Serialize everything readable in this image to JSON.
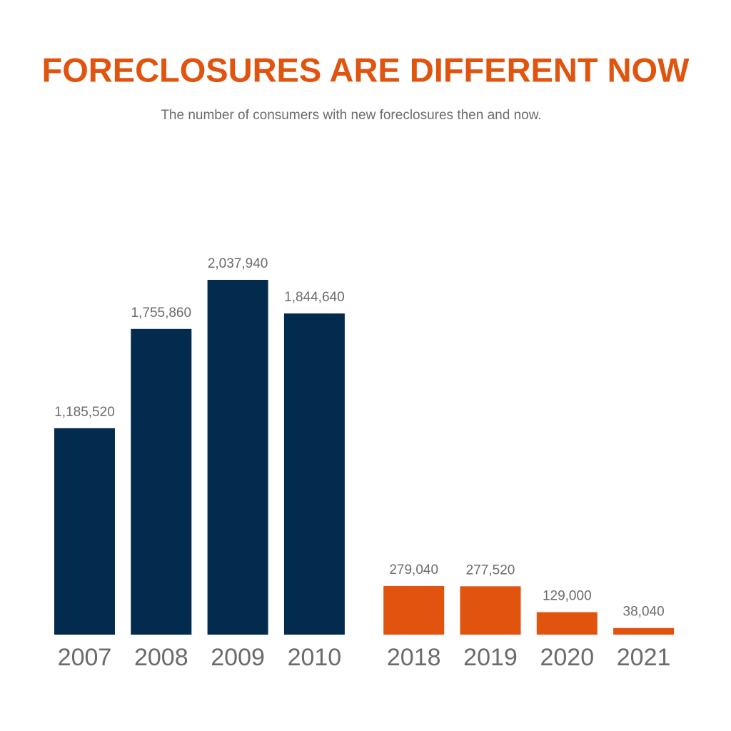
{
  "chart_data": {
    "type": "bar",
    "title": "FORECLOSURES ARE DIFFERENT NOW",
    "subtitle": "The number of consumers with new foreclosures then and now.",
    "categories": [
      "2007",
      "2008",
      "2009",
      "2010",
      "2018",
      "2019",
      "2020",
      "2021"
    ],
    "values": [
      1185520,
      1755860,
      2037940,
      1844640,
      279040,
      277520,
      129000,
      38040
    ],
    "value_labels": [
      "1,185,520",
      "1,755,860",
      "2,037,940",
      "1,844,640",
      "279,040",
      "277,520",
      "129,000",
      "38,040"
    ],
    "colors": [
      "#022b4e",
      "#022b4e",
      "#022b4e",
      "#022b4e",
      "#e0540f",
      "#e0540f",
      "#e0540f",
      "#e0540f"
    ]
  }
}
